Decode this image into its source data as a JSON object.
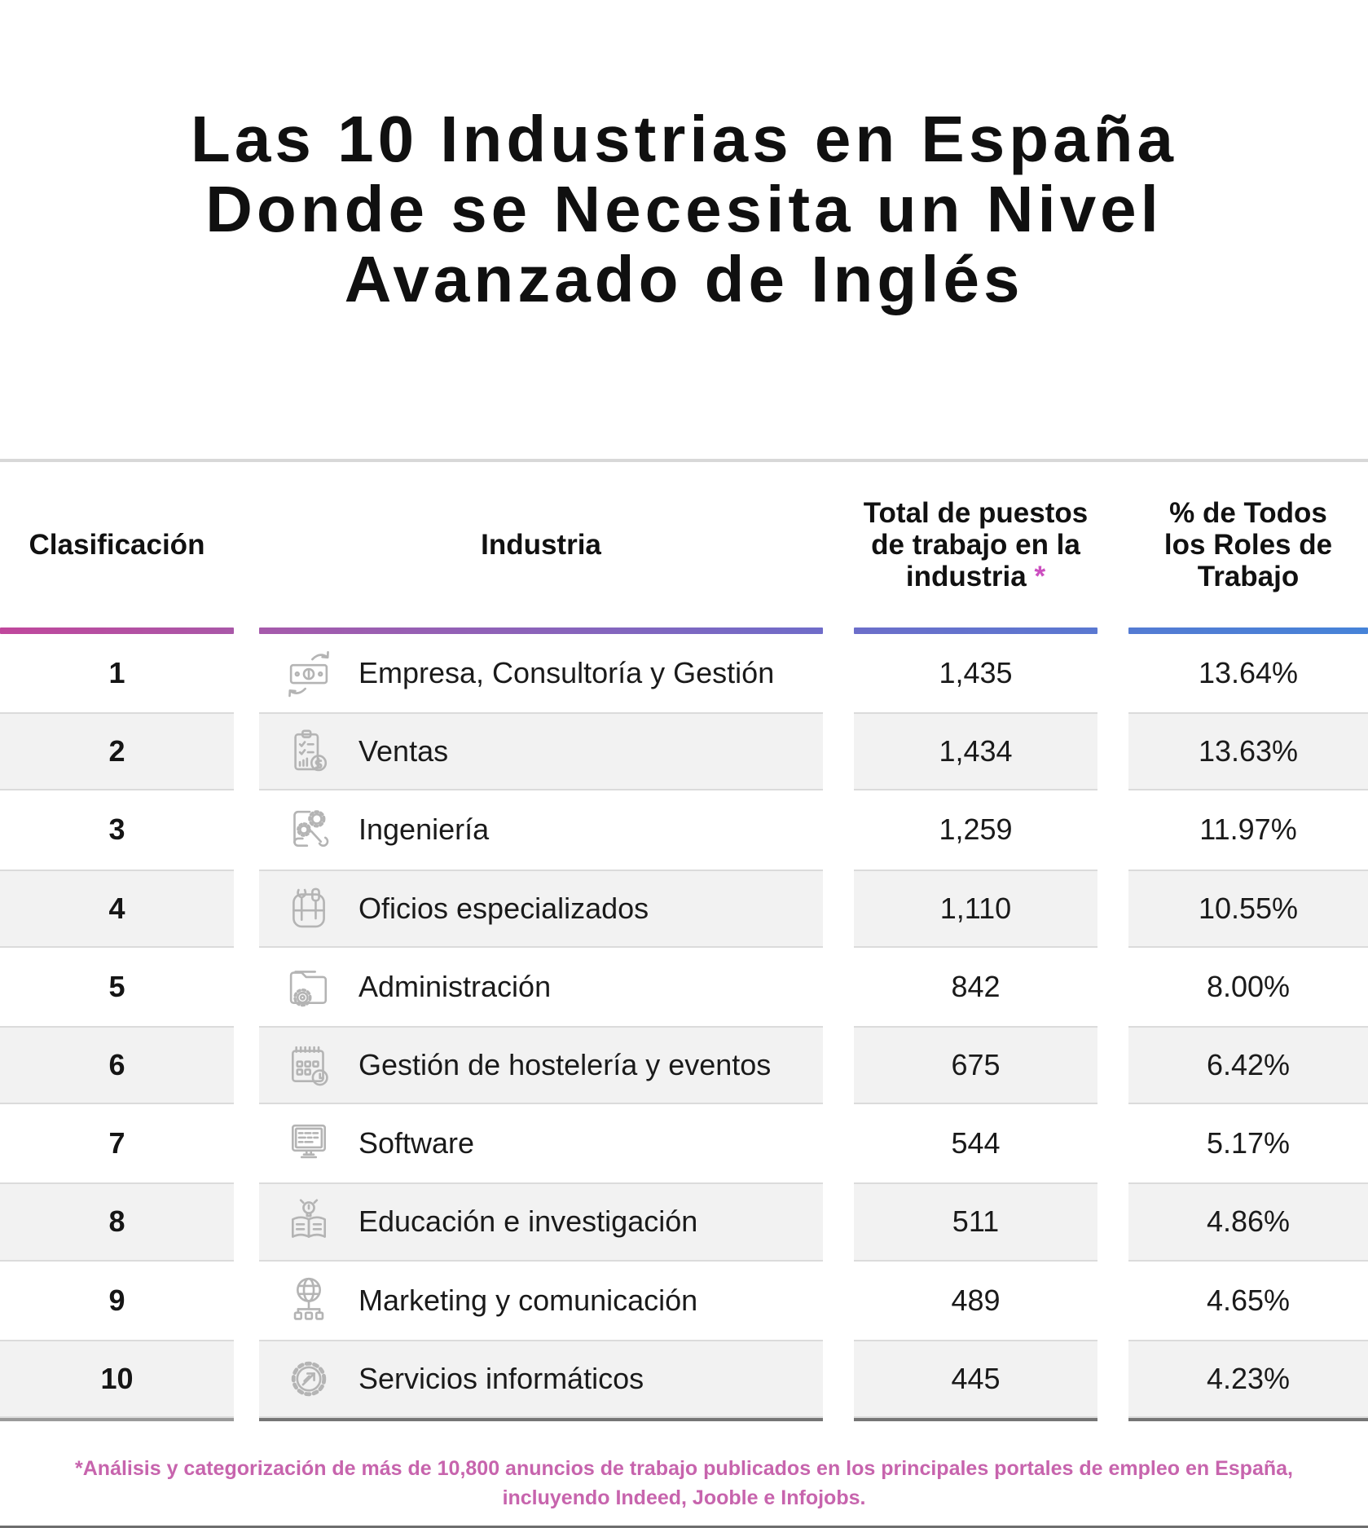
{
  "title": "Las 10 Industrias en España\nDonde se Necesita un Nivel\nAvanzado de Inglés",
  "table": {
    "columns": [
      {
        "label": "Clasificación"
      },
      {
        "label": "Industria"
      },
      {
        "label": "Total de puestos\nde trabajo en la\nindustria",
        "asterisk": " *"
      },
      {
        "label": "% de Todos\nlos Roles de\nTrabajo"
      }
    ],
    "rows": [
      {
        "rank": "1",
        "icon": "money-exchange-icon",
        "industry": "Empresa, Consultoría y Gestión",
        "total": "1,435",
        "percent": "13.64%"
      },
      {
        "rank": "2",
        "icon": "sales-clipboard-icon",
        "industry": "Ventas",
        "total": "1,434",
        "percent": "13.63%"
      },
      {
        "rank": "3",
        "icon": "engineering-icon",
        "industry": "Ingeniería",
        "total": "1,259",
        "percent": "11.97%"
      },
      {
        "rank": "4",
        "icon": "skilled-trades-icon",
        "industry": "Oficios especializados",
        "total": "1,110",
        "percent": "10.55%"
      },
      {
        "rank": "5",
        "icon": "administration-icon",
        "industry": "Administración",
        "total": "842",
        "percent": "8.00%"
      },
      {
        "rank": "6",
        "icon": "hospitality-events-icon",
        "industry": "Gestión de hostelería y eventos",
        "total": "675",
        "percent": "6.42%"
      },
      {
        "rank": "7",
        "icon": "software-icon",
        "industry": "Software",
        "total": "544",
        "percent": "5.17%"
      },
      {
        "rank": "8",
        "icon": "education-research-icon",
        "industry": "Educación e investigación",
        "total": "511",
        "percent": "4.86%"
      },
      {
        "rank": "9",
        "icon": "marketing-communication-icon",
        "industry": "Marketing y comunicación",
        "total": "489",
        "percent": "4.65%"
      },
      {
        "rank": "10",
        "icon": "it-services-icon",
        "industry": "Servicios informáticos",
        "total": "445",
        "percent": "4.23%"
      }
    ]
  },
  "footnote": "*Análisis y categorización de más de 10,800 anuncios de trabajo publicados en los principales portales de empleo en España,\nincluyendo Indeed, Jooble e Infojobs.",
  "colors": {
    "footnote_pink": "#c764ad",
    "asterisk_pink": "#cc4fc0",
    "gradient_start": "#c0479c",
    "gradient_mid": "#7b68c8",
    "gradient_end": "#4683d8",
    "stripe_gray": "#f2f2f2",
    "icon_gray": "#b4b4b4"
  },
  "chart_data": {
    "type": "table",
    "title": "Las 10 Industrias en España Donde se Necesita un Nivel Avanzado de Inglés",
    "columns": [
      "Clasificación",
      "Industria",
      "Total de puestos de trabajo en la industria *",
      "% de Todos los Roles de Trabajo"
    ],
    "rows": [
      [
        1,
        "Empresa, Consultoría y Gestión",
        1435,
        "13.64%"
      ],
      [
        2,
        "Ventas",
        1434,
        "13.63%"
      ],
      [
        3,
        "Ingeniería",
        1259,
        "11.97%"
      ],
      [
        4,
        "Oficios especializados",
        1110,
        "10.55%"
      ],
      [
        5,
        "Administración",
        842,
        "8.00%"
      ],
      [
        6,
        "Gestión de hostelería y eventos",
        675,
        "6.42%"
      ],
      [
        7,
        "Software",
        544,
        "5.17%"
      ],
      [
        8,
        "Educación e investigación",
        511,
        "4.86%"
      ],
      [
        9,
        "Marketing y comunicación",
        489,
        "4.65%"
      ],
      [
        10,
        "Servicios informáticos",
        445,
        "4.23%"
      ]
    ],
    "footnote": "*Análisis y categorización de más de 10,800 anuncios de trabajo publicados en los principales portales de empleo en España, incluyendo Indeed, Jooble e Infojobs."
  }
}
